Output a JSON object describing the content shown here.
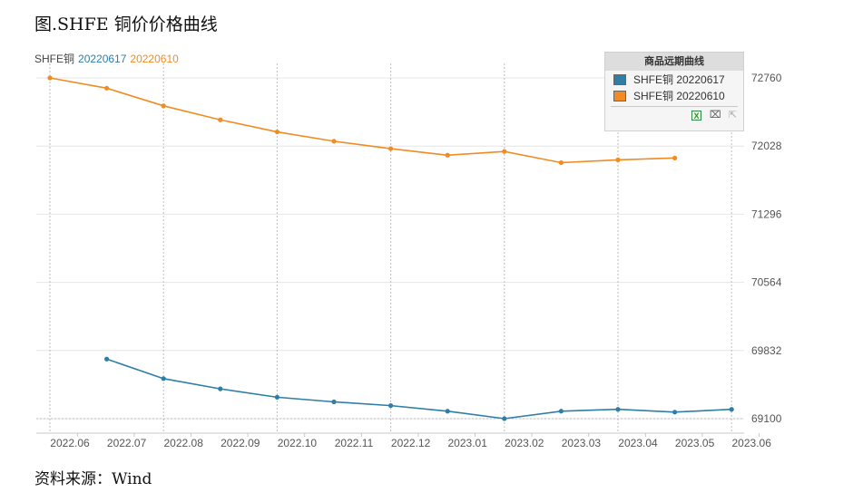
{
  "figure": {
    "title": "图.SHFE 铜价价格曲线",
    "source": "资料来源：Wind"
  },
  "header": {
    "prefix": "SHFE铜",
    "series1_label": "20220617",
    "series2_label": "20220610"
  },
  "legend": {
    "title": "商品远期曲线",
    "items": [
      {
        "label": "SHFE铜 20220617",
        "color": "#2e7ea6"
      },
      {
        "label": "SHFE铜 20220610",
        "color": "#f08c22"
      }
    ],
    "tools": [
      "excel-export-icon",
      "crop-icon",
      "reset-icon"
    ]
  },
  "chart_data": {
    "type": "line",
    "xlabel": "",
    "ylabel": "",
    "x_tick_labels": [
      "2022.06",
      "2022.07",
      "2022.08",
      "2022.09",
      "2022.10",
      "2022.11",
      "2022.12",
      "2023.01",
      "2023.02",
      "2023.03",
      "2023.04",
      "2023.05",
      "2023.06"
    ],
    "y_ticks": [
      69100,
      69832,
      70564,
      71296,
      72028,
      72760
    ],
    "ylim": [
      69100,
      72760
    ],
    "grid": true,
    "legend_position": "top-right",
    "series": [
      {
        "name": "SHFE铜 20220617",
        "color": "#2e7ea6",
        "points": [
          {
            "x": "2022.07",
            "y": 69740
          },
          {
            "x": "2022.08",
            "y": 69530
          },
          {
            "x": "2022.09",
            "y": 69420
          },
          {
            "x": "2022.10",
            "y": 69330
          },
          {
            "x": "2022.11",
            "y": 69280
          },
          {
            "x": "2022.12",
            "y": 69240
          },
          {
            "x": "2023.01",
            "y": 69180
          },
          {
            "x": "2023.02",
            "y": 69100
          },
          {
            "x": "2023.03",
            "y": 69180
          },
          {
            "x": "2023.04",
            "y": 69200
          },
          {
            "x": "2023.05",
            "y": 69170
          },
          {
            "x": "2023.06",
            "y": 69200
          }
        ]
      },
      {
        "name": "SHFE铜 20220610",
        "color": "#f08c22",
        "points": [
          {
            "x": "2022.06",
            "y": 72760
          },
          {
            "x": "2022.07",
            "y": 72650
          },
          {
            "x": "2022.08",
            "y": 72460
          },
          {
            "x": "2022.09",
            "y": 72310
          },
          {
            "x": "2022.10",
            "y": 72180
          },
          {
            "x": "2022.11",
            "y": 72080
          },
          {
            "x": "2022.12",
            "y": 72000
          },
          {
            "x": "2023.01",
            "y": 71930
          },
          {
            "x": "2023.02",
            "y": 71970
          },
          {
            "x": "2023.03",
            "y": 71850
          },
          {
            "x": "2023.04",
            "y": 71880
          },
          {
            "x": "2023.05",
            "y": 71900
          }
        ]
      }
    ]
  }
}
